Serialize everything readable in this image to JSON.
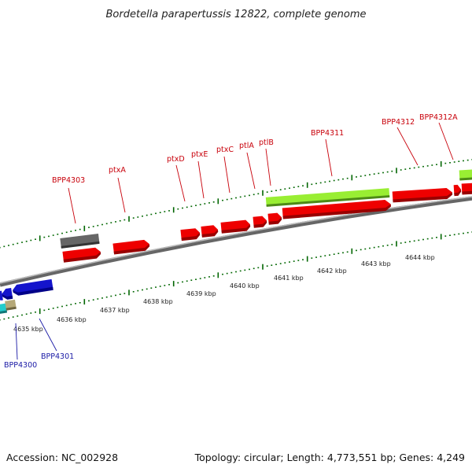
{
  "title": "Bordetella parapertussis 12822, complete genome",
  "footer": {
    "accession": "Accession: NC_002928",
    "stats": "Topology: circular; Length: 4,773,551 bp; Genes: 4,249"
  },
  "colors": {
    "cds": "#ee0000",
    "pseudo": "#555555",
    "rna_green": "#99ee33",
    "reverse_blue": "#1414cc",
    "cyan": "#22cccc",
    "tan": "#b5a878",
    "ticks": "#006600",
    "backbone": "#888888",
    "label_red": "#c8000a",
    "label_blue": "#1a1aa6"
  },
  "scale_labels": [
    "4635 kbp",
    "4636 kbp",
    "4637 kbp",
    "4638 kbp",
    "4639 kbp",
    "4640 kbp",
    "4641 kbp",
    "4642 kbp",
    "4643 kbp",
    "4644 kbp"
  ],
  "gene_labels": {
    "BPP4303": "BPP4303",
    "ptxA": "ptxA",
    "ptxD": "ptxD",
    "ptxE": "ptxE",
    "ptxC": "ptxC",
    "ptlA": "ptlA",
    "ptlB": "ptlB",
    "BPP4311": "BPP4311",
    "BPP4312": "BPP4312",
    "BPP4312A": "BPP4312A",
    "BPP4300": "BPP4300",
    "BPP4301": "BPP4301"
  }
}
